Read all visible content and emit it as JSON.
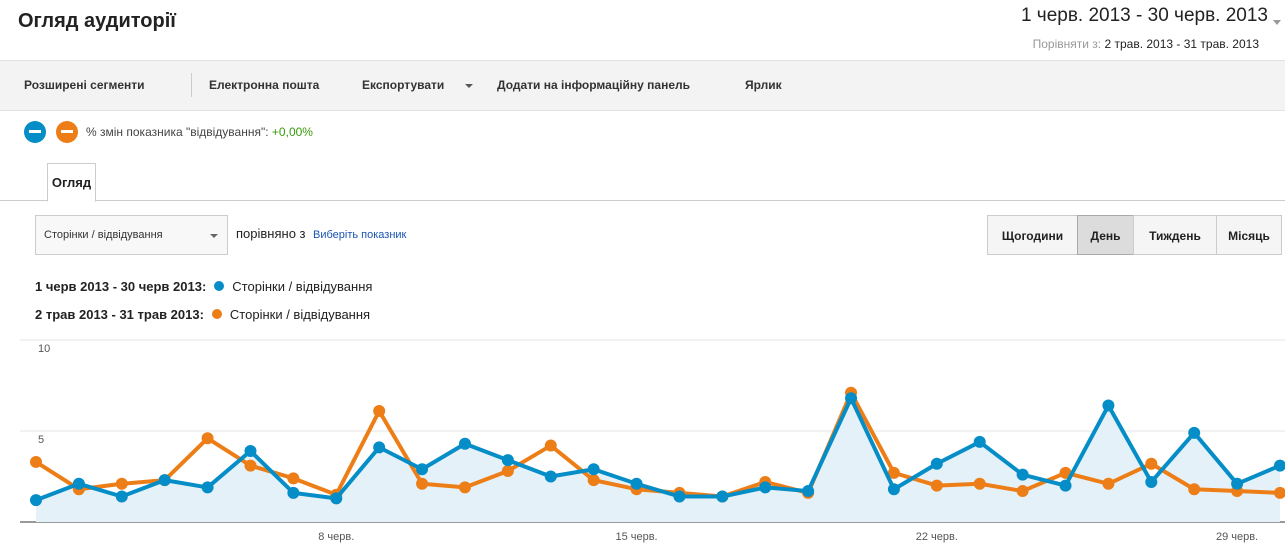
{
  "header": {
    "title": "Огляд аудиторії",
    "date_range": "1 черв. 2013 - 30 черв. 2013",
    "compare_label": "Порівняти з:",
    "compare_range": "2 трав. 2013 - 31 трав. 2013"
  },
  "toolbar": [
    "Розширені сегменти",
    "Електронна пошта",
    "Експортувати",
    "Додати на інформаційну панель",
    "Ярлик"
  ],
  "segments": {
    "label": "% змін показника \"відвідування\":",
    "change": "+0,00%"
  },
  "tabs": [
    "Огляд"
  ],
  "controls": {
    "metric": "Сторінки / відвідування",
    "compare_text": "порівняно з",
    "select_metric": "Виберіть показник",
    "periods": [
      "Щогодини",
      "День",
      "Тиждень",
      "Місяць"
    ],
    "selected": "День"
  },
  "chart_data": {
    "type": "line",
    "categories": [
      null,
      null,
      null,
      null,
      null,
      null,
      null,
      "8 черв.",
      null,
      null,
      null,
      null,
      null,
      null,
      "15 черв.",
      null,
      null,
      null,
      null,
      null,
      null,
      "22 черв.",
      null,
      null,
      null,
      null,
      null,
      null,
      "29 черв.",
      null
    ],
    "series": [
      {
        "name": "Сторінки / відвідування",
        "period": "1 черв 2013 - 30 черв 2013:",
        "color": "#058dc7",
        "area": true,
        "values": [
          1.2,
          2.1,
          1.4,
          2.3,
          1.9,
          3.9,
          1.6,
          1.3,
          4.1,
          2.9,
          4.3,
          3.4,
          2.5,
          2.9,
          2.1,
          1.4,
          1.4,
          1.9,
          1.7,
          6.8,
          1.8,
          3.2,
          4.4,
          2.6,
          2.0,
          6.4,
          2.2,
          4.9,
          2.1,
          3.1
        ]
      },
      {
        "name": "Сторінки / відвідування",
        "period": "2 трав 2013 - 31 трав 2013:",
        "color": "#ed7e17",
        "area": false,
        "values": [
          3.3,
          1.8,
          2.1,
          2.3,
          4.6,
          3.1,
          2.4,
          1.5,
          6.1,
          2.1,
          1.9,
          2.8,
          4.2,
          2.3,
          1.8,
          1.6,
          1.4,
          2.2,
          1.6,
          7.1,
          2.7,
          2.0,
          2.1,
          1.7,
          2.7,
          2.1,
          3.2,
          1.8,
          1.7,
          1.6
        ]
      }
    ],
    "ylim": [
      0,
      10
    ],
    "yticks": [
      5,
      10
    ],
    "grid": true
  }
}
